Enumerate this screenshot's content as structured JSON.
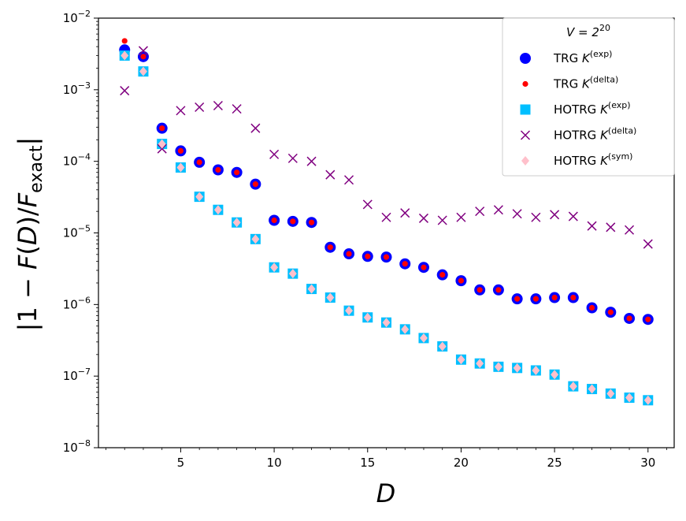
{
  "chart_data": {
    "type": "scatter",
    "title": "",
    "xlabel": "D",
    "ylabel": "|1 − F(D)/F_exact|",
    "ylabel_parts": {
      "pre": "|1 − ",
      "F1": "F",
      "paren": "(",
      "D": "D",
      "paren2": ")/",
      "F2": "F",
      "sub": "exact",
      "post": "|"
    },
    "xlim": [
      0.6,
      31.4
    ],
    "ylim_log10": [
      -8,
      -2
    ],
    "yscale": "log",
    "grid": false,
    "x_ticks": [
      5,
      10,
      15,
      20,
      25,
      30
    ],
    "x_tick_labels": [
      "5",
      "10",
      "15",
      "20",
      "25",
      "30"
    ],
    "y_ticks_log10": [
      -8,
      -7,
      -6,
      -5,
      -4,
      -3,
      -2
    ],
    "y_tick_labels": [
      {
        "base": "10",
        "exp": "−8"
      },
      {
        "base": "10",
        "exp": "−7"
      },
      {
        "base": "10",
        "exp": "−6"
      },
      {
        "base": "10",
        "exp": "−5"
      },
      {
        "base": "10",
        "exp": "−4"
      },
      {
        "base": "10",
        "exp": "−3"
      },
      {
        "base": "10",
        "exp": "−2"
      }
    ],
    "legend": {
      "placement": "top-right",
      "title": {
        "prefix": "V = 2",
        "exp": "20"
      },
      "entries": [
        {
          "label": "TRG ",
          "K": "K",
          "sup": "(exp)",
          "marker": "circle-large",
          "color": "#0000ff"
        },
        {
          "label": "TRG ",
          "K": "K",
          "sup": "(delta)",
          "marker": "circle-small",
          "color": "#ff0000"
        },
        {
          "label": "HOTRG ",
          "K": "K",
          "sup": "(exp)",
          "marker": "square",
          "color": "#00bfff"
        },
        {
          "label": "HOTRG ",
          "K": "K",
          "sup": "(delta)",
          "marker": "x",
          "color": "#800080"
        },
        {
          "label": "HOTRG ",
          "K": "K",
          "sup": "(sym)",
          "marker": "diamond",
          "color": "#ffc0cb"
        }
      ]
    },
    "x": [
      2,
      3,
      4,
      5,
      6,
      7,
      8,
      9,
      10,
      11,
      12,
      13,
      14,
      15,
      16,
      17,
      18,
      19,
      20,
      21,
      22,
      23,
      24,
      25,
      26,
      27,
      28,
      29,
      30
    ],
    "series": [
      {
        "name": "TRG K(exp)",
        "marker": "circle-large",
        "color": "#0000ff",
        "values": [
          0.0036,
          0.0029,
          0.00029,
          0.00014,
          9.7e-05,
          7.6e-05,
          7e-05,
          4.8e-05,
          1.5e-05,
          1.45e-05,
          1.4e-05,
          6.3e-06,
          5.1e-06,
          4.7e-06,
          4.6e-06,
          3.7e-06,
          3.3e-06,
          2.6e-06,
          2.15e-06,
          1.6e-06,
          1.6e-06,
          1.2e-06,
          1.2e-06,
          1.25e-06,
          1.25e-06,
          9e-07,
          7.8e-07,
          6.4e-07,
          6.2e-07
        ]
      },
      {
        "name": "TRG K(delta)",
        "marker": "circle-small",
        "color": "#ff0000",
        "values": [
          0.0048,
          0.0029,
          0.00029,
          0.00014,
          9.7e-05,
          7.6e-05,
          7e-05,
          4.8e-05,
          1.5e-05,
          1.45e-05,
          1.4e-05,
          6.3e-06,
          5.1e-06,
          4.7e-06,
          4.6e-06,
          3.7e-06,
          3.3e-06,
          2.6e-06,
          2.15e-06,
          1.6e-06,
          1.6e-06,
          1.2e-06,
          1.2e-06,
          1.25e-06,
          1.25e-06,
          9e-07,
          7.8e-07,
          6.4e-07,
          6.2e-07
        ]
      },
      {
        "name": "HOTRG K(exp)",
        "marker": "square",
        "color": "#00bfff",
        "values": [
          0.003,
          0.0018,
          0.000175,
          8.2e-05,
          3.2e-05,
          2.1e-05,
          1.4e-05,
          8.2e-06,
          3.3e-06,
          2.7e-06,
          1.65e-06,
          1.25e-06,
          8.2e-07,
          6.6e-07,
          5.6e-07,
          4.5e-07,
          3.4e-07,
          2.6e-07,
          1.7e-07,
          1.5e-07,
          1.35e-07,
          1.3e-07,
          1.2e-07,
          1.05e-07,
          7.2e-08,
          6.6e-08,
          5.7e-08,
          5e-08,
          4.6e-08
        ]
      },
      {
        "name": "HOTRG K(delta)",
        "marker": "x",
        "color": "#800080",
        "values": [
          0.00097,
          0.0035,
          0.00015,
          0.00051,
          0.00057,
          0.0006,
          0.00054,
          0.00029,
          0.000125,
          0.00011,
          0.0001,
          6.5e-05,
          5.5e-05,
          2.5e-05,
          1.65e-05,
          1.9e-05,
          1.6e-05,
          1.5e-05,
          1.65e-05,
          2e-05,
          2.1e-05,
          1.85e-05,
          1.65e-05,
          1.8e-05,
          1.7e-05,
          1.25e-05,
          1.2e-05,
          1.1e-05,
          7e-06
        ]
      },
      {
        "name": "HOTRG K(sym)",
        "marker": "diamond",
        "color": "#ffc0cb",
        "values": [
          0.003,
          0.0018,
          0.000175,
          8.2e-05,
          3.2e-05,
          2.1e-05,
          1.4e-05,
          8.2e-06,
          3.3e-06,
          2.7e-06,
          1.65e-06,
          1.25e-06,
          8.2e-07,
          6.6e-07,
          5.6e-07,
          4.5e-07,
          3.4e-07,
          2.6e-07,
          1.7e-07,
          1.5e-07,
          1.35e-07,
          1.3e-07,
          1.2e-07,
          1.05e-07,
          7.2e-08,
          6.6e-08,
          5.7e-08,
          5e-08,
          4.6e-08
        ]
      }
    ]
  }
}
